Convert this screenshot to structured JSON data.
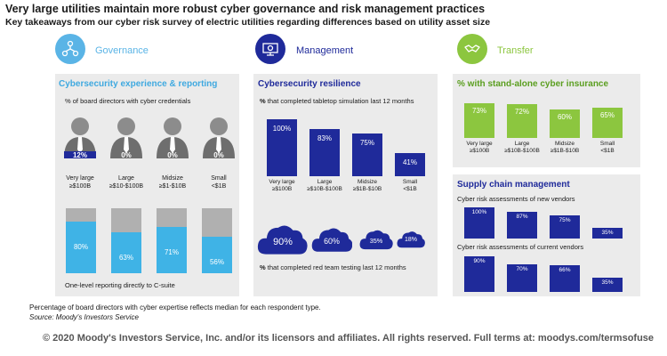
{
  "title": "Very large utilities maintain more robust cyber governance and risk management practices",
  "subtitle": "Key takeaways from our cyber risk survey of electric utilities regarding differences based on utility asset size",
  "sections": {
    "governance": {
      "label": "Governance",
      "icon": "network-icon",
      "color": "#5ab4e6"
    },
    "management": {
      "label": "Management",
      "icon": "gear-icon",
      "color": "#1f2a9a"
    },
    "transfer": {
      "label": "Transfer",
      "icon": "handshake-icon",
      "color": "#8cc63f"
    }
  },
  "governance_panel": {
    "title": "Cybersecurity experience & reporting",
    "directors_label": "% of board directors with cyber credentials",
    "reporting_label": "One-level reporting directly to C-suite"
  },
  "management_panel": {
    "title": "Cybersecurity resilience",
    "tabletop_label": "that completed tabletop simulation last 12 months",
    "redteam_label": "that completed red team testing last 12 months",
    "pct_symbol": "%"
  },
  "transfer_panel": {
    "title": "% with stand-alone cyber insurance"
  },
  "supply_panel": {
    "title": "Supply chain management",
    "new_label": "Cyber risk assessments of new vendors",
    "current_label": "Cyber risk assessments of current vendors"
  },
  "chart_data": [
    {
      "type": "bar",
      "name": "board-directors-cyber-credentials",
      "categories": [
        "Very large\n≥$100B",
        "Large\n≥$10-$100B",
        "Midsize\n≥$1-$10B",
        "Small\n<$1B"
      ],
      "values": [
        12,
        0,
        0,
        0
      ],
      "value_labels": [
        "12%",
        "0%",
        "0%",
        "0%"
      ],
      "color": "#1f2a9a"
    },
    {
      "type": "bar",
      "name": "reporting-to-c-suite",
      "categories": [
        "Very large\n≥$100B",
        "Large\n≥$10-$100B",
        "Midsize\n≥$1-$10B",
        "Small\n<$1B"
      ],
      "values": [
        80,
        63,
        71,
        56
      ],
      "value_labels": [
        "80%",
        "63%",
        "71%",
        "56%"
      ],
      "ylim": [
        0,
        100
      ],
      "color": "#3fb3e6"
    },
    {
      "type": "bar",
      "name": "tabletop-simulation",
      "categories": [
        "Very large\n≥$100B",
        "Large\n≥$10B-$100B",
        "Midsize\n≥$1B-$10B",
        "Small\n<$1B"
      ],
      "values": [
        100,
        83,
        75,
        41
      ],
      "value_labels": [
        "100%",
        "83%",
        "75%",
        "41%"
      ],
      "ylim": [
        0,
        100
      ],
      "color": "#1f2a9a"
    },
    {
      "type": "bar",
      "name": "red-team-testing",
      "categories": [
        "Very large",
        "Large",
        "Midsize",
        "Small"
      ],
      "values": [
        90,
        60,
        35,
        18
      ],
      "value_labels": [
        "90%",
        "60%",
        "35%",
        "18%"
      ],
      "ylim": [
        0,
        100
      ],
      "color": "#1f2a9a"
    },
    {
      "type": "bar",
      "name": "stand-alone-cyber-insurance",
      "categories": [
        "Very large\n≥$100B",
        "Large\n≥$10B-$100B",
        "Midsize\n≥$1B-$10B",
        "Small\n<$1B"
      ],
      "values": [
        73,
        72,
        60,
        65
      ],
      "value_labels": [
        "73%",
        "72%",
        "60%",
        "65%"
      ],
      "ylim": [
        0,
        100
      ],
      "color": "#8cc63f"
    },
    {
      "type": "bar",
      "name": "new-vendor-assessments",
      "categories": [
        "Very large",
        "Large",
        "Midsize",
        "Small"
      ],
      "values": [
        100,
        87,
        75,
        35
      ],
      "value_labels": [
        "100%",
        "87%",
        "75%",
        "35%"
      ],
      "ylim": [
        0,
        100
      ],
      "color": "#1f2a9a"
    },
    {
      "type": "bar",
      "name": "current-vendor-assessments",
      "categories": [
        "Very large",
        "Large",
        "Midsize",
        "Small"
      ],
      "values": [
        90,
        70,
        66,
        35
      ],
      "value_labels": [
        "90%",
        "70%",
        "66%",
        "35%"
      ],
      "ylim": [
        0,
        100
      ],
      "color": "#1f2a9a"
    }
  ],
  "footnote": "Percentage of board directors with cyber expertise reflects median for each respondent type.",
  "source": "Source: Moody's Investors Service",
  "copyright": "© 2020 Moody's Investors Service, Inc. and/or its licensors and affiliates. All rights reserved. Full terms at: moodys.com/termsofuse"
}
